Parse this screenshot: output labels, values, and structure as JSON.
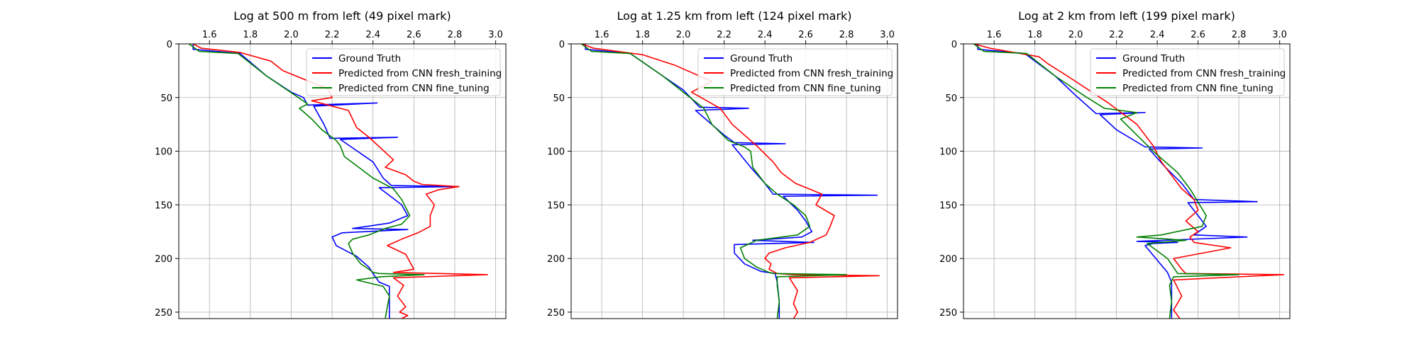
{
  "chart_data": [
    {
      "type": "line",
      "title": "Log at 500 m from left (49 pixel mark)",
      "xlim": [
        1.45,
        3.05
      ],
      "ylim": [
        256,
        0
      ],
      "xticks": [
        "1.6",
        "1.8",
        "2.0",
        "2.2",
        "2.4",
        "2.6",
        "2.8",
        "3.0"
      ],
      "yticks": [
        "0",
        "50",
        "100",
        "150",
        "200",
        "250"
      ],
      "grid": true,
      "legend_position": "top-right",
      "series": [
        {
          "name": "Ground Truth",
          "color": "#0000ff",
          "x": [
            1.52,
            1.52,
            1.75,
            1.88,
            2.0,
            2.06,
            2.08,
            2.42,
            2.11,
            2.16,
            2.19,
            2.52,
            2.24,
            2.4,
            2.45,
            2.49,
            2.82,
            2.43,
            2.54,
            2.57,
            2.48,
            2.3,
            2.57,
            2.25,
            2.2,
            2.22,
            2.32,
            2.38,
            2.4,
            2.43,
            2.48,
            2.48,
            2.48
          ],
          "y": [
            0,
            5,
            9,
            30,
            45,
            50,
            57,
            55,
            58,
            75,
            88,
            87,
            89,
            110,
            125,
            132,
            133,
            134,
            150,
            160,
            167,
            172,
            173,
            176,
            180,
            188,
            198,
            208,
            214,
            222,
            226,
            240,
            256
          ]
        },
        {
          "name": "Predicted from CNN fresh_training",
          "color": "#ff0000",
          "x": [
            1.52,
            1.56,
            1.75,
            1.9,
            1.96,
            2.18,
            2.2,
            2.1,
            2.28,
            2.32,
            2.38,
            2.5,
            2.46,
            2.56,
            2.6,
            2.64,
            2.82,
            2.72,
            2.66,
            2.7,
            2.68,
            2.68,
            2.62,
            2.54,
            2.47,
            2.56,
            2.58,
            2.6,
            2.5,
            2.96,
            2.5,
            2.55,
            2.52,
            2.56,
            2.53,
            2.57,
            2.54
          ],
          "y": [
            0,
            4,
            8,
            16,
            25,
            42,
            50,
            53,
            62,
            78,
            87,
            108,
            115,
            122,
            128,
            131,
            133,
            136,
            140,
            150,
            160,
            170,
            176,
            182,
            188,
            196,
            203,
            210,
            213,
            215,
            218,
            225,
            235,
            245,
            250,
            253,
            256
          ]
        },
        {
          "name": "Predicted from CNN fine_tuning",
          "color": "#008000",
          "x": [
            1.5,
            1.55,
            1.74,
            1.88,
            2.02,
            2.08,
            2.04,
            2.1,
            2.15,
            2.22,
            2.24,
            2.26,
            2.4,
            2.5,
            2.54,
            2.58,
            2.54,
            2.46,
            2.38,
            2.3,
            2.28,
            2.3,
            2.34,
            2.38,
            2.4,
            2.43,
            2.65,
            2.44,
            2.32,
            2.45,
            2.48,
            2.47,
            2.46
          ],
          "y": [
            0,
            7,
            9,
            30,
            48,
            56,
            60,
            70,
            80,
            90,
            95,
            105,
            125,
            135,
            145,
            160,
            168,
            172,
            178,
            182,
            186,
            195,
            205,
            210,
            213,
            214,
            215,
            217,
            220,
            226,
            235,
            245,
            256
          ]
        }
      ]
    },
    {
      "type": "line",
      "title": "Log at 1.25 km from left (124 pixel mark)",
      "xlim": [
        1.45,
        3.05
      ],
      "ylim": [
        256,
        0
      ],
      "xticks": [
        "1.6",
        "1.8",
        "2.0",
        "2.2",
        "2.4",
        "2.6",
        "2.8",
        "3.0"
      ],
      "yticks": [
        "0",
        "50",
        "100",
        "150",
        "200",
        "250"
      ],
      "grid": true,
      "legend_position": "top-right",
      "series": [
        {
          "name": "Ground Truth",
          "color": "#0000ff",
          "x": [
            1.52,
            1.52,
            1.74,
            1.9,
            2.0,
            2.08,
            2.32,
            2.06,
            2.2,
            2.25,
            2.5,
            2.24,
            2.33,
            2.4,
            2.44,
            2.95,
            2.49,
            2.56,
            2.6,
            2.63,
            2.58,
            2.34,
            2.64,
            2.25,
            2.25,
            2.3,
            2.38,
            2.45,
            2.46,
            2.47,
            2.47
          ],
          "y": [
            0,
            5,
            9,
            30,
            43,
            59,
            60,
            62,
            85,
            92,
            93,
            94,
            115,
            130,
            140,
            141,
            142,
            155,
            165,
            175,
            180,
            183,
            185,
            187,
            195,
            205,
            212,
            214,
            222,
            240,
            256
          ]
        },
        {
          "name": "Predicted from CNN fresh_training",
          "color": "#ff0000",
          "x": [
            1.5,
            1.56,
            1.8,
            1.96,
            2.14,
            2.04,
            2.18,
            2.24,
            2.36,
            2.44,
            2.48,
            2.55,
            2.68,
            2.65,
            2.74,
            2.72,
            2.7,
            2.62,
            2.5,
            2.42,
            2.4,
            2.43,
            2.42,
            2.46,
            2.54,
            2.96,
            2.52,
            2.56,
            2.54,
            2.56,
            2.54
          ],
          "y": [
            0,
            4,
            10,
            20,
            35,
            45,
            60,
            75,
            95,
            110,
            120,
            130,
            140,
            150,
            160,
            170,
            178,
            185,
            190,
            195,
            200,
            205,
            210,
            214,
            215,
            216,
            218,
            230,
            242,
            250,
            256
          ]
        },
        {
          "name": "Predicted from CNN fine_tuning",
          "color": "#008000",
          "x": [
            1.5,
            1.55,
            1.74,
            1.9,
            2.0,
            2.1,
            2.14,
            2.22,
            2.3,
            2.33,
            2.34,
            2.4,
            2.46,
            2.54,
            2.6,
            2.62,
            2.56,
            2.36,
            2.28,
            2.3,
            2.36,
            2.42,
            2.44,
            2.8,
            2.46,
            2.46,
            2.47,
            2.46
          ],
          "y": [
            0,
            7,
            9,
            30,
            45,
            60,
            75,
            90,
            96,
            100,
            115,
            130,
            140,
            150,
            160,
            170,
            178,
            183,
            190,
            200,
            208,
            213,
            214,
            215,
            217,
            225,
            240,
            256
          ]
        }
      ]
    },
    {
      "type": "line",
      "title": "Log at 2 km from left (199 pixel mark)",
      "xlim": [
        1.45,
        3.05
      ],
      "ylim": [
        256,
        0
      ],
      "xticks": [
        "1.6",
        "1.8",
        "2.0",
        "2.2",
        "2.4",
        "2.6",
        "2.8",
        "3.0"
      ],
      "yticks": [
        "0",
        "50",
        "100",
        "150",
        "200",
        "250"
      ],
      "grid": true,
      "legend_position": "top-right",
      "series": [
        {
          "name": "Ground Truth",
          "color": "#0000ff",
          "x": [
            1.52,
            1.52,
            1.75,
            1.9,
            2.0,
            2.1,
            2.34,
            2.12,
            2.2,
            2.34,
            2.62,
            2.36,
            2.44,
            2.52,
            2.58,
            2.89,
            2.55,
            2.6,
            2.64,
            2.58,
            2.84,
            2.3,
            2.5,
            2.38,
            2.34,
            2.45,
            2.47,
            2.47,
            2.47
          ],
          "y": [
            0,
            5,
            9,
            30,
            48,
            65,
            64,
            66,
            80,
            96,
            97,
            98,
            115,
            130,
            145,
            147,
            148,
            160,
            170,
            178,
            180,
            184,
            185,
            186,
            188,
            213,
            222,
            240,
            256
          ]
        },
        {
          "name": "Predicted from CNN fresh_training",
          "color": "#ff0000",
          "x": [
            1.5,
            1.58,
            1.82,
            1.86,
            1.96,
            2.16,
            2.3,
            2.38,
            2.42,
            2.48,
            2.52,
            2.58,
            2.6,
            2.54,
            2.6,
            2.56,
            2.58,
            2.76,
            2.48,
            2.52,
            2.54,
            3.02,
            2.48,
            2.52,
            2.48,
            2.51
          ],
          "y": [
            0,
            4,
            12,
            18,
            30,
            55,
            75,
            95,
            110,
            125,
            135,
            145,
            155,
            165,
            175,
            180,
            185,
            190,
            200,
            210,
            214,
            215,
            220,
            235,
            248,
            256
          ]
        },
        {
          "name": "Predicted from CNN fine_tuning",
          "color": "#008000",
          "x": [
            1.5,
            1.55,
            1.76,
            1.9,
            2.04,
            2.14,
            2.3,
            2.22,
            2.3,
            2.38,
            2.5,
            2.56,
            2.64,
            2.62,
            2.42,
            2.3,
            2.54,
            2.35,
            2.45,
            2.5,
            2.8,
            2.48,
            2.46,
            2.47,
            2.46
          ],
          "y": [
            0,
            7,
            9,
            30,
            48,
            60,
            64,
            70,
            85,
            100,
            120,
            135,
            160,
            170,
            178,
            180,
            183,
            186,
            200,
            214,
            215,
            217,
            225,
            240,
            256
          ]
        }
      ]
    }
  ]
}
